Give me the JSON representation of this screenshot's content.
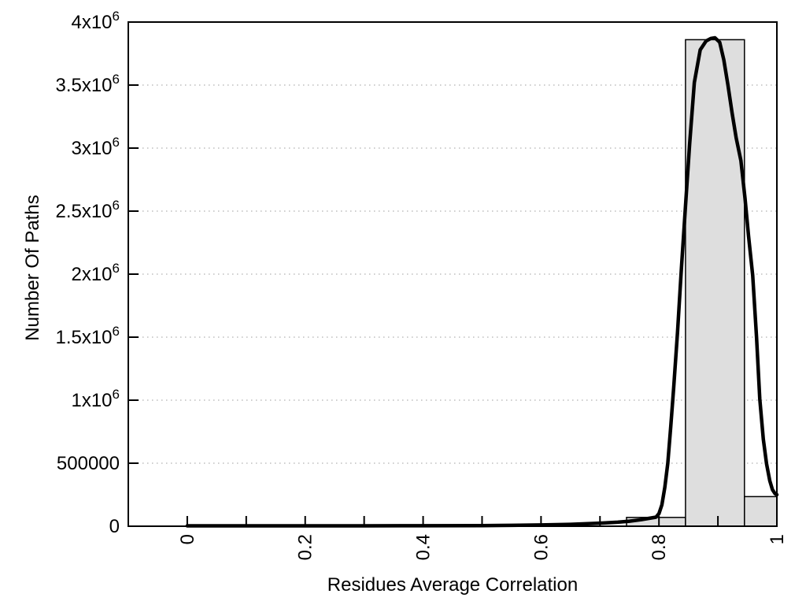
{
  "window": {
    "background": "#ffffff"
  },
  "chart_data": {
    "type": "bar",
    "subtype": "histogram_with_fit_curve",
    "title": "",
    "xlabel": "Residues Average Correlation",
    "ylabel": "Number Of Paths",
    "xlim": [
      -0.1,
      1.0
    ],
    "ylim": [
      0,
      4000000
    ],
    "grid": {
      "orientation": "horizontal",
      "style": "dotted",
      "color": "#bdbdbd",
      "at": [
        500000,
        1000000,
        1500000,
        2000000,
        2500000,
        3000000,
        3500000
      ]
    },
    "legend": null,
    "x_major_ticks": [
      {
        "v": 0,
        "label": "0"
      },
      {
        "v": 0.2,
        "label": "0.2"
      },
      {
        "v": 0.4,
        "label": "0.4"
      },
      {
        "v": 0.6,
        "label": "0.6"
      },
      {
        "v": 0.8,
        "label": "0.8"
      },
      {
        "v": 1.0,
        "label": "1"
      }
    ],
    "x_minor_ticks": [
      0,
      0.1,
      0.2,
      0.3,
      0.4,
      0.5,
      0.6,
      0.7,
      0.8,
      0.9,
      1.0
    ],
    "x_tick_label_rotation_deg": -90,
    "y_ticks": [
      {
        "v": 0,
        "label": "0"
      },
      {
        "v": 500000,
        "label": "500000"
      },
      {
        "v": 1000000,
        "label": "1x10^6"
      },
      {
        "v": 1500000,
        "label": "1.5x10^6"
      },
      {
        "v": 2000000,
        "label": "2x10^6"
      },
      {
        "v": 2500000,
        "label": "2.5x10^6"
      },
      {
        "v": 3000000,
        "label": "3x10^6"
      },
      {
        "v": 3500000,
        "label": "3.5x10^6"
      },
      {
        "v": 4000000,
        "label": "4x10^6"
      }
    ],
    "bars": [
      {
        "from": 0.745,
        "to": 0.845,
        "count": 70000
      },
      {
        "from": 0.845,
        "to": 0.945,
        "count": 3860000
      },
      {
        "from": 0.945,
        "to": 1.0,
        "count": 235000
      }
    ],
    "fit_curve": {
      "name": "gaussian-fit",
      "peak_x": 0.895,
      "peak_y": 3875000,
      "points": [
        [
          0.0,
          3000
        ],
        [
          0.1,
          3000
        ],
        [
          0.2,
          3000
        ],
        [
          0.3,
          3200
        ],
        [
          0.4,
          3800
        ],
        [
          0.5,
          5000
        ],
        [
          0.55,
          7000
        ],
        [
          0.6,
          10000
        ],
        [
          0.65,
          15000
        ],
        [
          0.7,
          24000
        ],
        [
          0.73,
          32000
        ],
        [
          0.75,
          40000
        ],
        [
          0.77,
          52000
        ],
        [
          0.78,
          60000
        ],
        [
          0.795,
          72000
        ],
        [
          0.8,
          100000
        ],
        [
          0.805,
          170000
        ],
        [
          0.81,
          310000
        ],
        [
          0.815,
          500000
        ],
        [
          0.82,
          790000
        ],
        [
          0.825,
          1100000
        ],
        [
          0.8315,
          1540000
        ],
        [
          0.838,
          2040000
        ],
        [
          0.845,
          2540000
        ],
        [
          0.852,
          3030000
        ],
        [
          0.86,
          3520000
        ],
        [
          0.87,
          3780000
        ],
        [
          0.88,
          3850000
        ],
        [
          0.888,
          3870000
        ],
        [
          0.895,
          3875000
        ],
        [
          0.903,
          3840000
        ],
        [
          0.91,
          3700000
        ],
        [
          0.917,
          3500000
        ],
        [
          0.924,
          3280000
        ],
        [
          0.931,
          3080000
        ],
        [
          0.939,
          2900000
        ],
        [
          0.946,
          2600000
        ],
        [
          0.952,
          2300000
        ],
        [
          0.959,
          1990000
        ],
        [
          0.9655,
          1500000
        ],
        [
          0.971,
          1010000
        ],
        [
          0.977,
          690000
        ],
        [
          0.9825,
          495000
        ],
        [
          0.988,
          360000
        ],
        [
          0.9925,
          290000
        ],
        [
          0.997,
          258000
        ],
        [
          1.0,
          250000
        ]
      ]
    },
    "colors": {
      "bar_fill": "#dedede",
      "bar_border": "#000000",
      "curve": "#000000",
      "grid": "#bdbdbd",
      "axis": "#000000",
      "text": "#000000",
      "background": "#ffffff"
    }
  }
}
